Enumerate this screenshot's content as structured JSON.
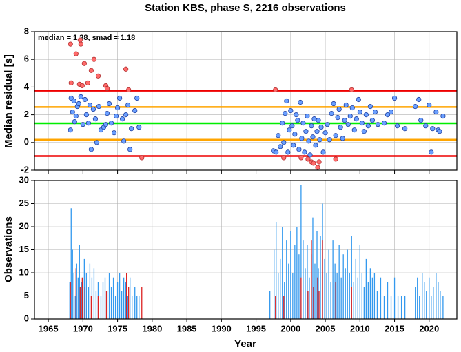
{
  "chart_data": [
    {
      "type": "scatter",
      "title": "Station KBS, phase S, 2216 observations",
      "annotation": "median = 1.38, smad = 1.18",
      "ylabel": "Median residual [s]",
      "xlim": [
        1963,
        2024
      ],
      "ylim": [
        -2,
        8
      ],
      "yticks": [
        -2,
        0,
        2,
        4,
        6,
        8
      ],
      "xticks": [
        1965,
        1970,
        1975,
        1980,
        1985,
        1990,
        1995,
        2000,
        2005,
        2010,
        2015,
        2020
      ],
      "grid": true,
      "hlines": [
        {
          "value": 1.38,
          "color": "#00ee00"
        },
        {
          "value": 2.56,
          "color": "#ffa500"
        },
        {
          "value": 0.2,
          "color": "#ffa500"
        },
        {
          "value": 3.74,
          "color": "#ee0000"
        },
        {
          "value": -0.98,
          "color": "#ee0000"
        }
      ],
      "series": [
        {
          "color": "#6a9fff",
          "edgecolor": "#1f3f9f",
          "x": [
            1968.2,
            1968.3,
            1968.5,
            1968.7,
            1968.8,
            1969.0,
            1969.2,
            1969.4,
            1969.7,
            1970.0,
            1970.3,
            1970.5,
            1970.8,
            1971.0,
            1971.2,
            1971.5,
            1971.8,
            1972.0,
            1972.3,
            1972.6,
            1973.0,
            1973.3,
            1973.5,
            1973.8,
            1974.1,
            1974.5,
            1974.8,
            1975.0,
            1975.3,
            1975.7,
            1975.9,
            1976.2,
            1976.5,
            1976.8,
            1977.0,
            1977.5,
            1977.8,
            1978.1,
            1997.5,
            1997.9,
            1998.2,
            1998.5,
            1998.8,
            1999.0,
            1999.2,
            1999.4,
            1999.6,
            1999.8,
            2000.0,
            2000.2,
            2000.4,
            2000.6,
            2000.8,
            2001.0,
            2001.2,
            2001.4,
            2001.6,
            2001.8,
            2002.0,
            2002.2,
            2002.4,
            2002.6,
            2002.8,
            2003.0,
            2003.2,
            2003.4,
            2003.6,
            2003.8,
            2004.0,
            2004.2,
            2004.4,
            2004.7,
            2005.0,
            2005.3,
            2005.6,
            2005.9,
            2006.2,
            2006.5,
            2006.8,
            2007.0,
            2007.2,
            2007.5,
            2007.8,
            2008.0,
            2008.3,
            2008.6,
            2008.9,
            2009.2,
            2009.5,
            2009.8,
            2010.0,
            2010.3,
            2010.6,
            2010.9,
            2011.2,
            2011.5,
            2011.8,
            2012.2,
            2012.6,
            2013.5,
            2014.0,
            2014.5,
            2015.0,
            2015.4,
            2016.5,
            2018.0,
            2018.5,
            2018.8,
            2019.5,
            2020.0,
            2020.3,
            2020.5,
            2021.0,
            2021.3,
            2021.5,
            2022.0
          ],
          "values": [
            0.9,
            3.2,
            2.2,
            3.0,
            1.5,
            1.9,
            2.6,
            2.8,
            3.3,
            1.3,
            3.1,
            2.0,
            1.4,
            2.7,
            -0.5,
            2.4,
            1.7,
            0.0,
            2.6,
            0.9,
            1.1,
            1.3,
            2.1,
            2.8,
            1.4,
            0.7,
            1.9,
            2.5,
            3.2,
            1.7,
            0.1,
            2.0,
            2.7,
            -0.5,
            1.0,
            2.3,
            3.2,
            1.1,
            -0.6,
            -0.7,
            0.5,
            -0.3,
            1.4,
            0.0,
            2.1,
            3.0,
            -0.7,
            0.9,
            2.3,
            1.2,
            -0.2,
            0.6,
            2.0,
            1.6,
            -0.5,
            2.9,
            0.3,
            1.4,
            -0.7,
            0.8,
            1.9,
            0.1,
            -0.9,
            1.2,
            0.4,
            1.7,
            -0.2,
            0.8,
            1.6,
            0.2,
            1.1,
            -0.7,
            0.7,
            1.3,
            0.2,
            2.1,
            2.8,
            0.5,
            1.8,
            2.4,
            1.1,
            0.3,
            1.6,
            2.7,
            1.3,
            1.9,
            2.5,
            0.9,
            1.7,
            3.1,
            2.2,
            1.4,
            0.8,
            2.0,
            1.2,
            2.6,
            1.6,
            2.2,
            1.3,
            1.4,
            2.0,
            2.2,
            3.2,
            1.2,
            1.0,
            2.6,
            3.1,
            1.6,
            1.2,
            2.7,
            -0.7,
            1.0,
            2.2,
            0.9,
            0.8,
            1.9
          ]
        },
        {
          "color": "#ff6a6a",
          "edgecolor": "#b03030",
          "x": [
            1968.2,
            1968.3,
            1969.0,
            1969.5,
            1969.6,
            1969.7,
            1969.9,
            1970.2,
            1970.7,
            1971.2,
            1971.6,
            1972.2,
            1973.3,
            1973.5,
            1976.2,
            1976.6,
            1978.5,
            1997.8,
            1999.0,
            2001.5,
            2002.5,
            2003.0,
            2003.3,
            2003.9,
            2004.1,
            2006.5,
            2008.8
          ],
          "values": [
            7.1,
            4.3,
            6.4,
            4.2,
            7.4,
            7.1,
            4.1,
            5.7,
            4.3,
            5.2,
            6.0,
            4.8,
            4.1,
            3.9,
            5.3,
            3.8,
            -1.1,
            3.8,
            -1.1,
            -1.1,
            -1.2,
            -1.4,
            -1.5,
            -1.8,
            -1.4,
            -1.2,
            3.8
          ]
        }
      ]
    },
    {
      "type": "bar",
      "xlabel": "Year",
      "ylabel": "Observations",
      "xlim": [
        1963,
        2024
      ],
      "ylim": [
        0,
        30
      ],
      "yticks": [
        0,
        5,
        10,
        15,
        20,
        25,
        30
      ],
      "xticks": [
        1965,
        1970,
        1975,
        1980,
        1985,
        1990,
        1995,
        2000,
        2005,
        2010,
        2015,
        2020
      ],
      "grid": true,
      "series": [
        {
          "color": "#3399ee",
          "x": [
            1968.1,
            1968.3,
            1968.5,
            1968.7,
            1968.9,
            1969.1,
            1969.3,
            1969.5,
            1969.8,
            1970.0,
            1970.2,
            1970.5,
            1970.8,
            1971.0,
            1971.3,
            1971.6,
            1971.9,
            1972.2,
            1972.6,
            1972.9,
            1973.2,
            1973.5,
            1973.8,
            1974.1,
            1974.4,
            1974.7,
            1975.0,
            1975.3,
            1975.6,
            1975.9,
            1976.2,
            1976.5,
            1976.8,
            1977.1,
            1977.5,
            1977.8,
            1978.1,
            1997.0,
            1997.6,
            1997.9,
            1998.2,
            1998.5,
            1998.8,
            1999.1,
            1999.4,
            1999.7,
            2000.0,
            2000.3,
            2000.6,
            2000.9,
            2001.2,
            2001.5,
            2001.8,
            2002.1,
            2002.4,
            2002.7,
            2003.0,
            2003.2,
            2003.5,
            2003.8,
            2004.0,
            2004.3,
            2004.6,
            2004.9,
            2005.2,
            2005.5,
            2005.8,
            2006.1,
            2006.4,
            2006.7,
            2007.0,
            2007.3,
            2007.6,
            2007.9,
            2008.2,
            2008.5,
            2008.8,
            2009.1,
            2009.4,
            2009.7,
            2010.0,
            2010.3,
            2010.6,
            2010.9,
            2011.2,
            2011.5,
            2011.8,
            2012.1,
            2012.5,
            2013.0,
            2013.5,
            2014.0,
            2014.5,
            2015.0,
            2015.5,
            2016.0,
            2016.5,
            2018.0,
            2018.3,
            2018.6,
            2019.0,
            2019.3,
            2019.6,
            2020.0,
            2020.3,
            2020.6,
            2021.0,
            2021.3,
            2021.6,
            2022.0
          ],
          "values": [
            8,
            24,
            15,
            10,
            5,
            12,
            9,
            16,
            8,
            5,
            13,
            10,
            7,
            12,
            9,
            11,
            6,
            8,
            5,
            8,
            9,
            6,
            10,
            7,
            9,
            5,
            8,
            10,
            6,
            9,
            8,
            5,
            9,
            5,
            7,
            5,
            5,
            6,
            15,
            21,
            10,
            13,
            20,
            8,
            17,
            12,
            19,
            10,
            16,
            20,
            14,
            29,
            17,
            11,
            16,
            9,
            14,
            22,
            12,
            19,
            11,
            18,
            25,
            13,
            10,
            15,
            8,
            17,
            12,
            10,
            16,
            9,
            14,
            11,
            15,
            10,
            18,
            8,
            13,
            9,
            16,
            10,
            7,
            13,
            8,
            11,
            9,
            10,
            6,
            9,
            5,
            8,
            5,
            9,
            5,
            5,
            5,
            7,
            9,
            5,
            10,
            8,
            6,
            9,
            5,
            7,
            10,
            8,
            6,
            5
          ]
        },
        {
          "color": "#dd2222",
          "x": [
            1968.2,
            1969.0,
            1969.6,
            1969.9,
            1970.3,
            1971.2,
            1972.2,
            1973.4,
            1976.3,
            1976.6,
            1978.5,
            1997.8,
            1999.0,
            2001.5,
            2002.5,
            2003.0,
            2003.3,
            2003.9,
            2004.1,
            2004.6,
            2006.5,
            2008.8
          ],
          "values": [
            8,
            11,
            7,
            9,
            7,
            5,
            5,
            6,
            10,
            7,
            7,
            5,
            5,
            9,
            6,
            17,
            7,
            9,
            6,
            17,
            8,
            7
          ]
        }
      ]
    }
  ]
}
